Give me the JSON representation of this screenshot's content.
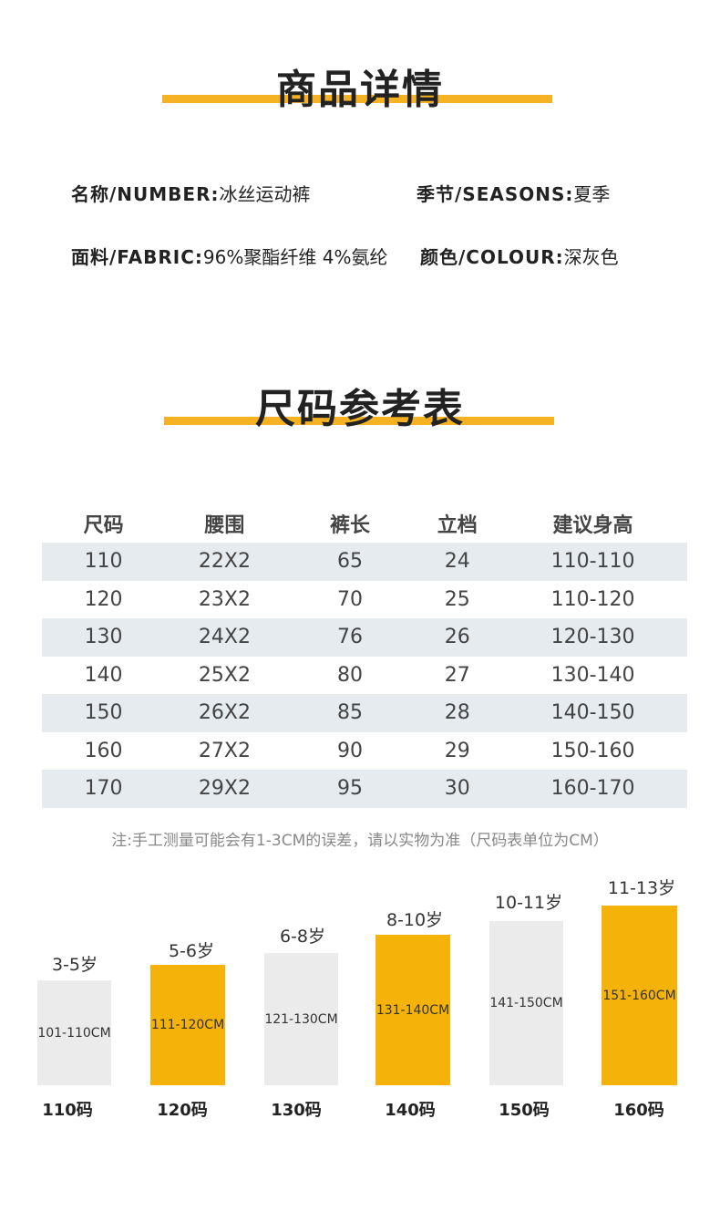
{
  "product": {
    "title": "商品详情",
    "name_key": "名称/NUMBER:",
    "name_val": "冰丝运动裤",
    "season_key": "季节/SEASONS:",
    "season_val": "夏季",
    "fabric_key": "面料/FABRIC:",
    "fabric_val": "96%聚酯纤维 4%氨纶",
    "colour_key": "颜色/COLOUR:",
    "colour_val": "深灰色"
  },
  "size_chart": {
    "title": "尺码参考表",
    "headers": [
      "尺码",
      "腰围",
      "裤长",
      "立档",
      "建议身高"
    ],
    "rows": [
      [
        "110",
        "22X2",
        "65",
        "24",
        "110-110"
      ],
      [
        "120",
        "23X2",
        "70",
        "25",
        "110-120"
      ],
      [
        "130",
        "24X2",
        "76",
        "26",
        "120-130"
      ],
      [
        "140",
        "25X2",
        "80",
        "27",
        "130-140"
      ],
      [
        "150",
        "26X2",
        "85",
        "28",
        "140-150"
      ],
      [
        "160",
        "27X2",
        "90",
        "29",
        "150-160"
      ],
      [
        "170",
        "29X2",
        "95",
        "30",
        "160-170"
      ]
    ],
    "note": "注:手工测量可能会有1-3CM的误差，请以实物为准（尺码表单位为CM）"
  },
  "height_guide": {
    "colors": {
      "orange": "#f5b30a",
      "gray": "#ebebeb"
    },
    "items": [
      {
        "age": "3-5岁",
        "range": "101-110CM",
        "code": "110码",
        "color": "gray"
      },
      {
        "age": "5-6岁",
        "range": "111-120CM",
        "code": "120码",
        "color": "orange"
      },
      {
        "age": "6-8岁",
        "range": "121-130CM",
        "code": "130码",
        "color": "gray"
      },
      {
        "age": "8-10岁",
        "range": "131-140CM",
        "code": "140码",
        "color": "orange"
      },
      {
        "age": "10-11岁",
        "range": "141-150CM",
        "code": "150码",
        "color": "gray"
      },
      {
        "age": "11-13岁",
        "range": "151-160CM",
        "code": "160码",
        "color": "orange"
      }
    ]
  }
}
